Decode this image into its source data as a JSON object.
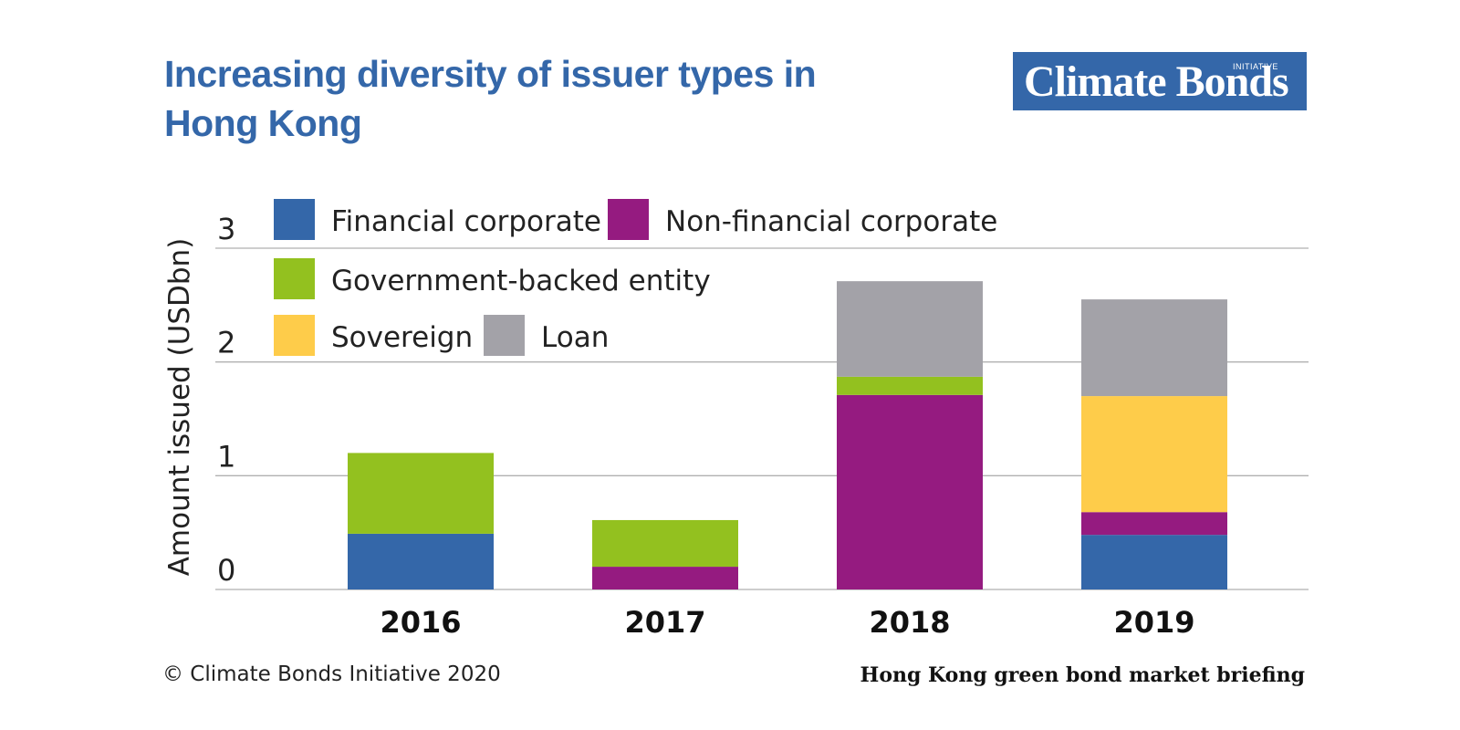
{
  "title": "Increasing diversity of issuer types in Hong Kong",
  "logo": {
    "main": "Climate Bonds",
    "sub": "INITIATIVE"
  },
  "footer": {
    "copyright": "© Climate Bonds Initiative 2020",
    "source": "Hong Kong green bond market briefing"
  },
  "chart_data": {
    "type": "bar",
    "stacked": true,
    "categories": [
      "2016",
      "2017",
      "2018",
      "2019"
    ],
    "ylabel": "Amount issued (USDbn)",
    "ylim": [
      0,
      3
    ],
    "yticks": [
      "0",
      "1",
      "2",
      "3"
    ],
    "grid": true,
    "legend_position": "top-left",
    "series": [
      {
        "name": "Financial corporate",
        "color": "#3467a9",
        "values": [
          0.49,
          0,
          0,
          0.48
        ]
      },
      {
        "name": "Non-financial corporate",
        "color": "#951b80",
        "values": [
          0,
          0.2,
          1.71,
          0.2
        ]
      },
      {
        "name": "Government-backed entity",
        "color": "#93c11f",
        "values": [
          0.71,
          0.41,
          0.16,
          0
        ]
      },
      {
        "name": "Sovereign",
        "color": "#fecc4a",
        "values": [
          0,
          0,
          0,
          1.02
        ]
      },
      {
        "name": "Loan",
        "color": "#a3a2a8",
        "values": [
          0,
          0,
          0.84,
          0.85
        ]
      }
    ]
  }
}
